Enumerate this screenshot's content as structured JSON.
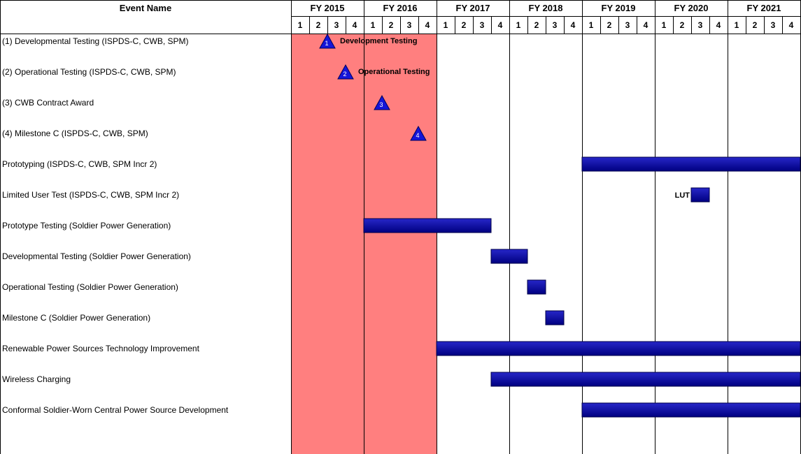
{
  "chart_data": {
    "type": "gantt",
    "header": {
      "event_column": "Event Name"
    },
    "fiscal_years": [
      "FY 2015",
      "FY 2016",
      "FY 2017",
      "FY 2018",
      "FY 2019",
      "FY 2020",
      "FY 2021"
    ],
    "quarters": [
      "1",
      "2",
      "3",
      "4"
    ],
    "shaded_years": [
      "FY 2015",
      "FY 2016"
    ],
    "colors": {
      "shade": "#ff7f7f",
      "bar_light": "#2626c8",
      "bar_dark": "#000080",
      "milestone": "#1515d8",
      "grid": "#000000"
    },
    "rows": [
      {
        "label": "(1) Developmental Testing (ISPDS-C, CWB, SPM)",
        "milestone": {
          "number": "1",
          "fy": 2015,
          "q": 3.0,
          "note": "Development Testing"
        }
      },
      {
        "label": "(2) Operational Testing (ISPDS-C, CWB, SPM)",
        "milestone": {
          "number": "2",
          "fy": 2015,
          "q": 4.0,
          "note": "Operational Testing"
        }
      },
      {
        "label": "(3) CWB Contract Award",
        "milestone": {
          "number": "3",
          "fy": 2016,
          "q": 2.0,
          "note": ""
        }
      },
      {
        "label": "(4) Milestone C (ISPDS-C, CWB, SPM)",
        "milestone": {
          "number": "4",
          "fy": 2016,
          "q": 4.0,
          "note": ""
        }
      },
      {
        "label": "Prototyping (ISPDS-C, CWB, SPM Incr 2)",
        "bar": {
          "start": {
            "fy": 2019,
            "q": 1
          },
          "end": {
            "fy": 2021,
            "q": 4
          }
        }
      },
      {
        "label": "Limited User Test (ISPDS-C, CWB, SPM Incr 2)",
        "bar": {
          "start": {
            "fy": 2020,
            "q": 3
          },
          "end": {
            "fy": 2020,
            "q": 3
          },
          "note": "LUT"
        }
      },
      {
        "label": "Prototype Testing (Soldier Power Generation)",
        "bar": {
          "start": {
            "fy": 2016,
            "q": 1
          },
          "end": {
            "fy": 2017,
            "q": 3
          }
        }
      },
      {
        "label": "Developmental Testing (Soldier Power Generation)",
        "bar": {
          "start": {
            "fy": 2017,
            "q": 4
          },
          "end": {
            "fy": 2018,
            "q": 1
          }
        }
      },
      {
        "label": "Operational Testing (Soldier Power Generation)",
        "bar": {
          "start": {
            "fy": 2018,
            "q": 2
          },
          "end": {
            "fy": 2018,
            "q": 2
          }
        }
      },
      {
        "label": "Milestone C (Soldier Power Generation)",
        "bar": {
          "start": {
            "fy": 2018,
            "q": 3
          },
          "end": {
            "fy": 2018,
            "q": 3
          }
        }
      },
      {
        "label": "Renewable Power Sources Technology Improvement",
        "bar": {
          "start": {
            "fy": 2017,
            "q": 1
          },
          "end": {
            "fy": 2021,
            "q": 4
          }
        }
      },
      {
        "label": "Wireless Charging",
        "bar": {
          "start": {
            "fy": 2017,
            "q": 4
          },
          "end": {
            "fy": 2021,
            "q": 4
          }
        }
      },
      {
        "label": "Conformal Soldier-Worn Central Power Source Development",
        "bar": {
          "start": {
            "fy": 2019,
            "q": 1
          },
          "end": {
            "fy": 2021,
            "q": 4
          }
        }
      }
    ]
  }
}
